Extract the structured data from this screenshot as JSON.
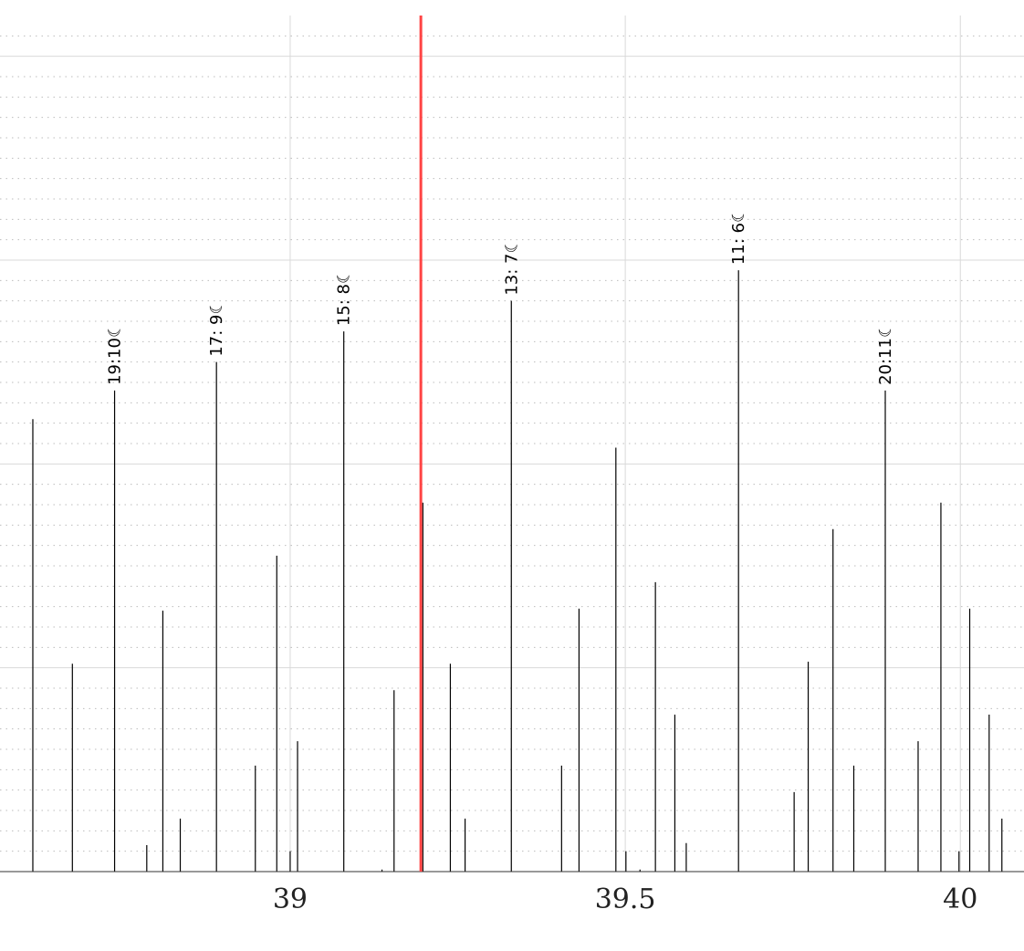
{
  "chart_data": {
    "type": "bar",
    "title": "",
    "xlabel": "",
    "ylabel": "",
    "xlim": [
      38.567,
      40.095
    ],
    "ylim": [
      0,
      4.2
    ],
    "grid": true,
    "grid_minor": true,
    "x_ticks": [
      {
        "value": 39,
        "label": "39"
      },
      {
        "value": 39.5,
        "label": "39.5"
      },
      {
        "value": 40,
        "label": "40"
      }
    ],
    "marker_line": {
      "x": 39.195,
      "color": "#ff4444"
    },
    "series": [
      {
        "values": [
          {
            "x": 38.616,
            "y": 2.22
          },
          {
            "x": 38.675,
            "y": 1.02
          },
          {
            "x": 38.738,
            "y": 2.36
          },
          {
            "x": 38.786,
            "y": 0.13
          },
          {
            "x": 38.81,
            "y": 1.28
          },
          {
            "x": 38.836,
            "y": 0.26
          },
          {
            "x": 38.89,
            "y": 2.5
          },
          {
            "x": 38.948,
            "y": 0.52
          },
          {
            "x": 38.98,
            "y": 1.55
          },
          {
            "x": 39.0,
            "y": 0.1
          },
          {
            "x": 39.011,
            "y": 0.64
          },
          {
            "x": 39.08,
            "y": 2.65
          },
          {
            "x": 39.137,
            "y": 0.01
          },
          {
            "x": 39.155,
            "y": 0.89
          },
          {
            "x": 39.198,
            "y": 1.81
          },
          {
            "x": 39.239,
            "y": 1.02
          },
          {
            "x": 39.261,
            "y": 0.26
          },
          {
            "x": 39.33,
            "y": 2.8
          },
          {
            "x": 39.405,
            "y": 0.52
          },
          {
            "x": 39.431,
            "y": 1.29
          },
          {
            "x": 39.486,
            "y": 2.08
          },
          {
            "x": 39.501,
            "y": 0.1
          },
          {
            "x": 39.522,
            "y": 0.01
          },
          {
            "x": 39.545,
            "y": 1.42
          },
          {
            "x": 39.574,
            "y": 0.77
          },
          {
            "x": 39.591,
            "y": 0.14
          },
          {
            "x": 39.669,
            "y": 2.95
          },
          {
            "x": 39.752,
            "y": 0.39
          },
          {
            "x": 39.773,
            "y": 1.03
          },
          {
            "x": 39.81,
            "y": 1.68
          },
          {
            "x": 39.841,
            "y": 0.52
          },
          {
            "x": 39.888,
            "y": 2.36
          },
          {
            "x": 39.937,
            "y": 0.64
          },
          {
            "x": 39.971,
            "y": 1.81
          },
          {
            "x": 39.998,
            "y": 0.1
          },
          {
            "x": 40.014,
            "y": 1.29
          },
          {
            "x": 40.043,
            "y": 0.77
          },
          {
            "x": 40.062,
            "y": 0.26
          }
        ]
      }
    ],
    "annotations": [
      {
        "x": 38.738,
        "y": 2.36,
        "text": "19:10☾"
      },
      {
        "x": 38.89,
        "y": 2.5,
        "text": "17: 9☾"
      },
      {
        "x": 39.08,
        "y": 2.65,
        "text": "15: 8☾"
      },
      {
        "x": 39.33,
        "y": 2.8,
        "text": "13: 7☾"
      },
      {
        "x": 39.669,
        "y": 2.95,
        "text": "11: 6☾"
      },
      {
        "x": 39.888,
        "y": 2.36,
        "text": "20:11☾"
      }
    ]
  }
}
